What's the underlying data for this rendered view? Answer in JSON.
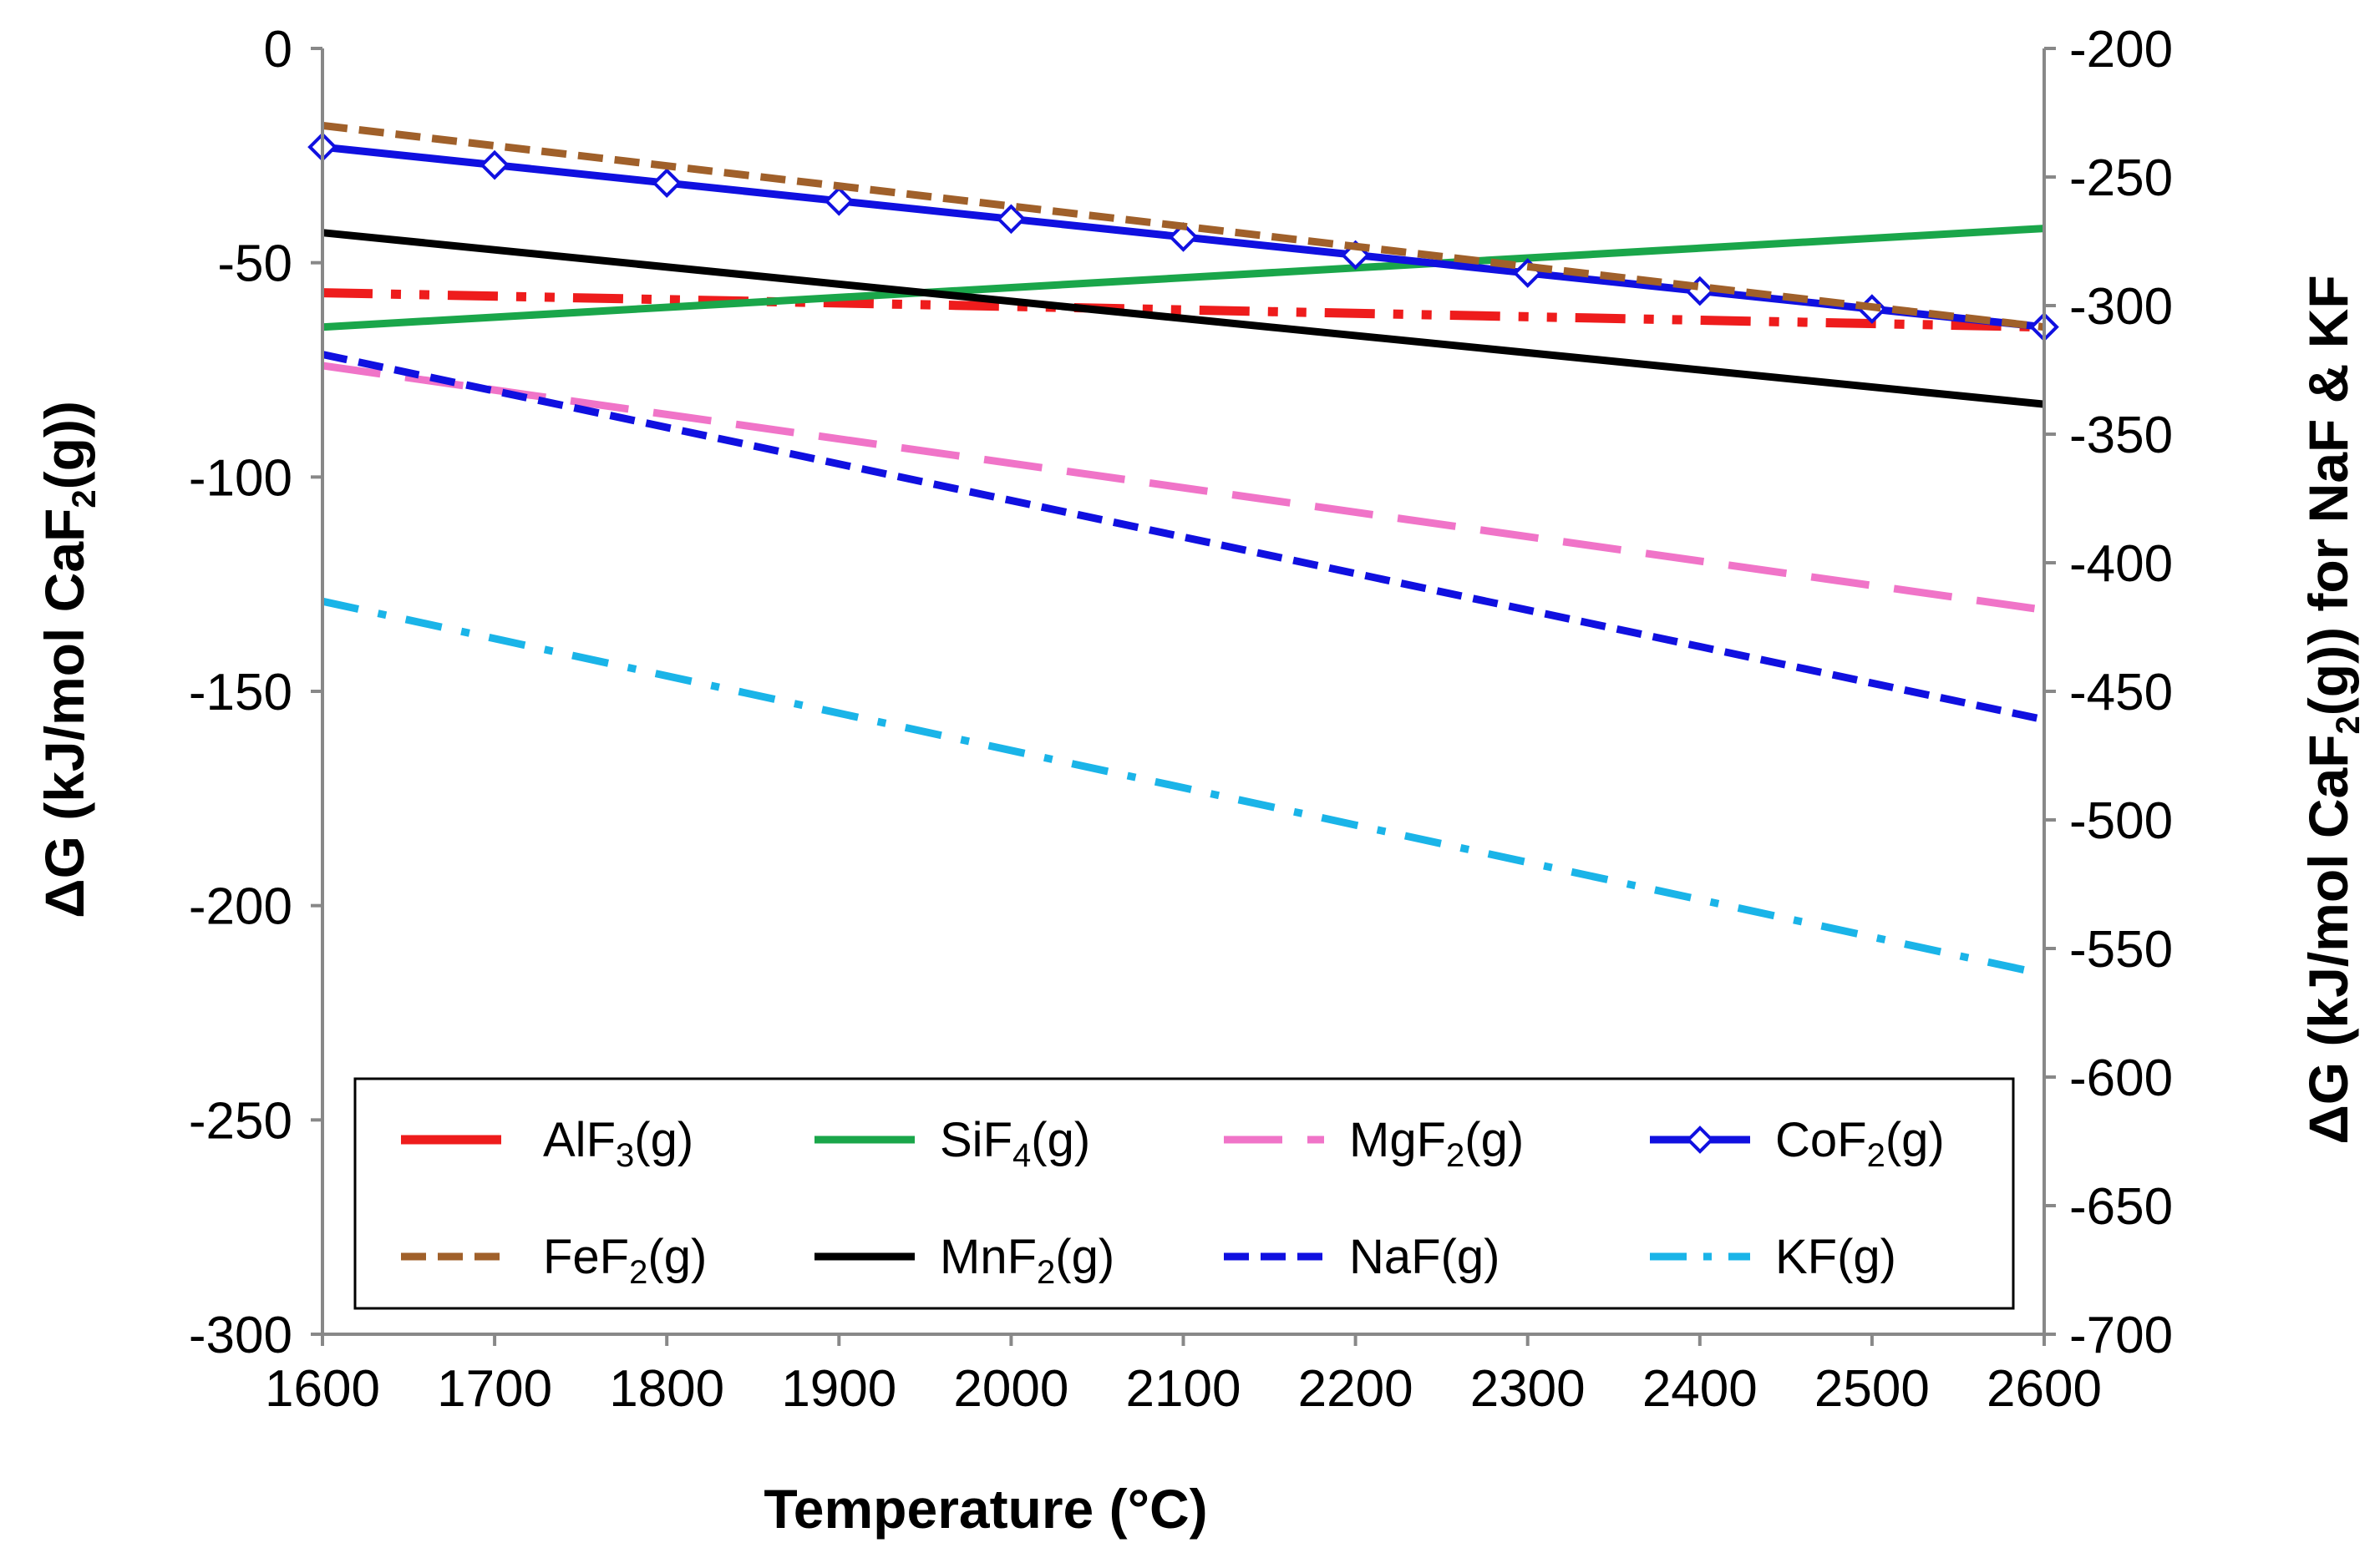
{
  "chart_data": {
    "type": "line",
    "xlabel": "Temperature (°C)",
    "ylabel_left": [
      "ΔG (kJ/mol CaF",
      "2",
      "(g))"
    ],
    "ylabel_right": [
      "ΔG  (kJ/mol CaF",
      "2",
      "(g)) for NaF & KF"
    ],
    "xlim": [
      1600,
      2600
    ],
    "ylim_left": [
      -300,
      0
    ],
    "ylim_right": [
      -700,
      -200
    ],
    "x_ticks": [
      "1600",
      "1700",
      "1800",
      "1900",
      "2000",
      "2100",
      "2200",
      "2300",
      "2400",
      "2500",
      "2600"
    ],
    "y_ticks_left": [
      "0",
      "-50",
      "-100",
      "-150",
      "-200",
      "-250",
      "-300"
    ],
    "y_ticks_right": [
      "-200",
      "-250",
      "-300",
      "-350",
      "-400",
      "-450",
      "-500",
      "-550",
      "-600",
      "-650",
      "-700"
    ],
    "legend_position": "bottom-inside",
    "series": [
      {
        "name": "AlF3(g)",
        "label_main": "AlF",
        "label_sub": "3",
        "label_tail": "(g)",
        "axis": "left",
        "color": "#ee1c1c",
        "style": "dashdotdot",
        "x": [
          1600,
          2600
        ],
        "y": [
          -57,
          -65
        ]
      },
      {
        "name": "SiF4(g)",
        "label_main": "SiF",
        "label_sub": "4",
        "label_tail": "(g)",
        "axis": "left",
        "color": "#1aa64a",
        "style": "solid",
        "x": [
          1600,
          2600
        ],
        "y": [
          -65,
          -42
        ]
      },
      {
        "name": "MgF2(g)",
        "label_main": "MgF",
        "label_sub": "2",
        "label_tail": "(g)",
        "axis": "left",
        "color": "#f074c8",
        "style": "longdash",
        "x": [
          1600,
          2600
        ],
        "y": [
          -74,
          -131
        ]
      },
      {
        "name": "CoF2(g)",
        "label_main": "CoF",
        "label_sub": "2",
        "label_tail": "(g)",
        "axis": "left",
        "color": "#1010e0",
        "style": "solid-diamond",
        "x": [
          1600,
          1700,
          1800,
          1900,
          2000,
          2100,
          2200,
          2300,
          2400,
          2500,
          2600
        ],
        "y": [
          -23,
          -27.2,
          -31.4,
          -35.6,
          -39.8,
          -44,
          -48.2,
          -52.4,
          -56.6,
          -60.8,
          -65
        ]
      },
      {
        "name": "FeF2(g)",
        "label_main": "FeF",
        "label_sub": "2",
        "label_tail": "(g)",
        "axis": "left",
        "color": "#a0602a",
        "style": "dash",
        "x": [
          1600,
          2600
        ],
        "y": [
          -18,
          -65
        ]
      },
      {
        "name": "MnF2(g)",
        "label_main": "MnF",
        "label_sub": "2",
        "label_tail": "(g)",
        "axis": "left",
        "color": "#000000",
        "style": "solid",
        "x": [
          1600,
          2600
        ],
        "y": [
          -43,
          -83
        ]
      },
      {
        "name": "NaF(g)",
        "label_main": "NaF(g)",
        "label_sub": "",
        "label_tail": "",
        "axis": "right",
        "color": "#1010e0",
        "style": "dash",
        "x": [
          1600,
          2600
        ],
        "y": [
          -319,
          -461
        ]
      },
      {
        "name": "KF(g)",
        "label_main": "KF(g)",
        "label_sub": "",
        "label_tail": "",
        "axis": "right",
        "color": "#1ab4e8",
        "style": "dashdot",
        "x": [
          1600,
          2600
        ],
        "y": [
          -415,
          -560
        ]
      }
    ]
  }
}
